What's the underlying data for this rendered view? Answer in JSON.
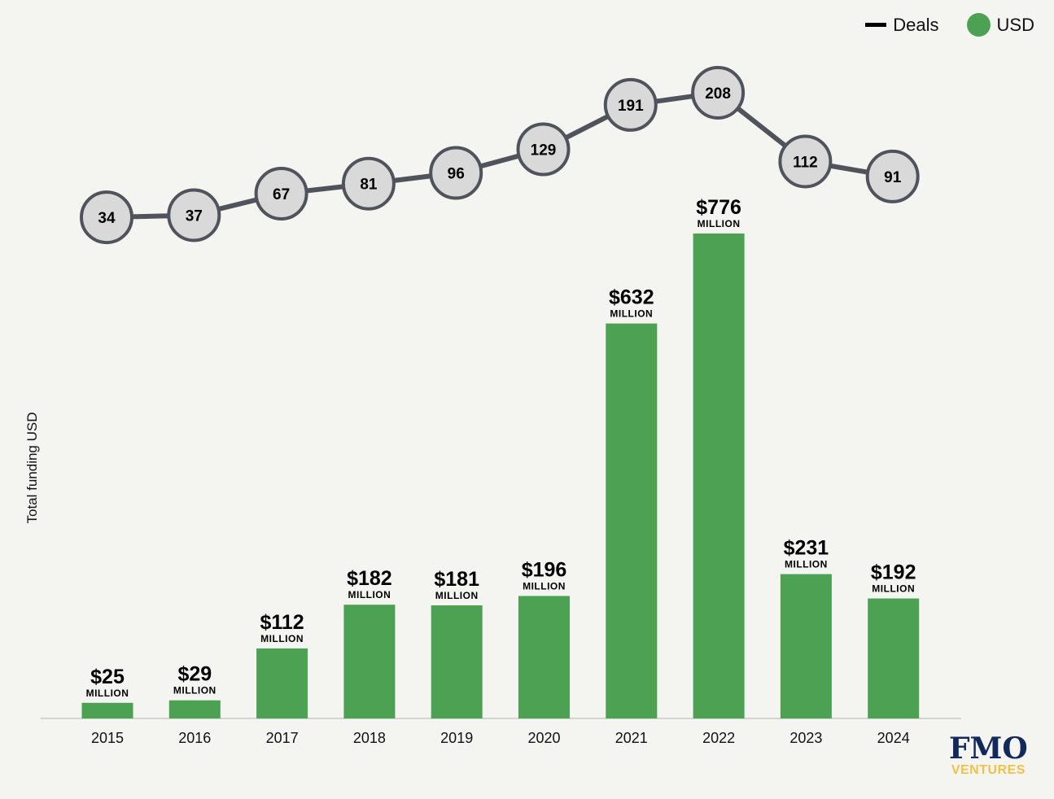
{
  "legend": {
    "deals_label": "Deals",
    "usd_label": "USD"
  },
  "logo": {
    "main": "FMO",
    "sub": "VENTURES"
  },
  "colors": {
    "bar": "#4ca153",
    "bubble_fill": "#d9d9d9",
    "bubble_stroke": "#50535b",
    "line": "#50535b",
    "logo_main": "#13295c",
    "logo_sub": "#f2c14a",
    "background": "#f4f4f0"
  },
  "chart_data": {
    "type": "bar",
    "title": "",
    "xlabel": "",
    "ylabel": "Total funding USD",
    "categories": [
      "2015",
      "2016",
      "2017",
      "2018",
      "2019",
      "2020",
      "2021",
      "2022",
      "2023",
      "2024"
    ],
    "series": [
      {
        "name": "USD",
        "type": "bar",
        "unit": "MILLION",
        "values": [
          25,
          29,
          112,
          182,
          181,
          196,
          632,
          776,
          231,
          192
        ],
        "labels": [
          "$25",
          "$29",
          "$112",
          "$182",
          "$181",
          "$196",
          "$632",
          "$776",
          "$231",
          "$192"
        ]
      },
      {
        "name": "Deals",
        "type": "line",
        "values": [
          34,
          37,
          67,
          81,
          96,
          129,
          191,
          208,
          112,
          91
        ]
      }
    ],
    "ylim": [
      0,
      776
    ],
    "grid": false,
    "legend_position": "top-right"
  }
}
